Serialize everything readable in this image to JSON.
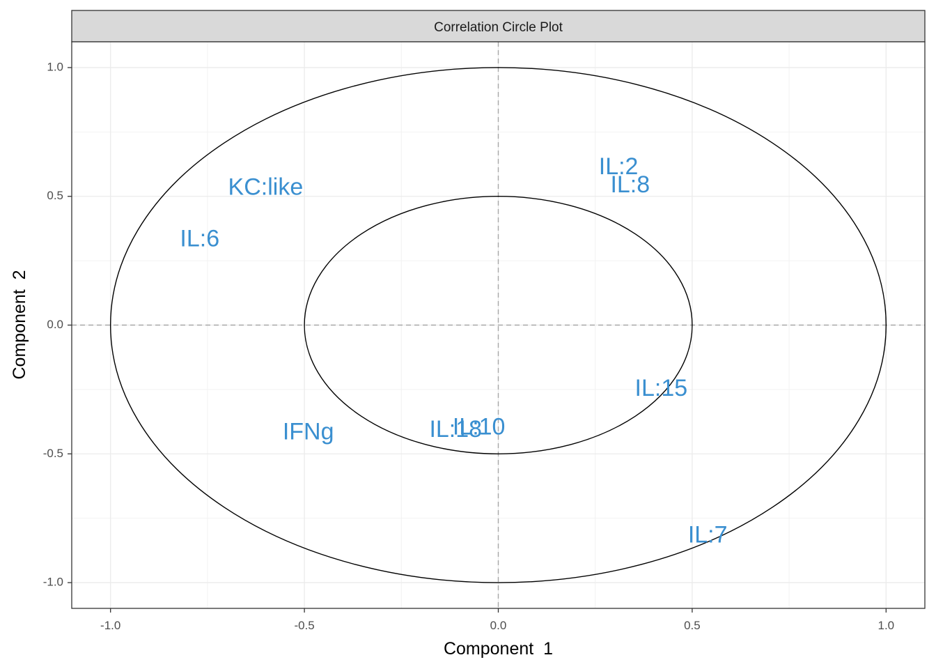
{
  "chart_data": {
    "type": "scatter",
    "title": "Correlation Circle Plot",
    "xlabel": "Component  1",
    "ylabel": "Component  2",
    "xlim": [
      -1.1,
      1.1
    ],
    "ylim": [
      -1.1,
      1.1
    ],
    "x_ticks": [
      -1.0,
      -0.5,
      0.0,
      0.5,
      1.0
    ],
    "y_ticks": [
      -1.0,
      -0.5,
      0.0,
      0.5,
      1.0
    ],
    "x_tick_labels": [
      "-1.0",
      "-0.5",
      "0.0",
      "0.5",
      "1.0"
    ],
    "y_tick_labels": [
      "-1.0",
      "-0.5",
      "0.0",
      "0.5",
      "1.0"
    ],
    "grid": true,
    "reference_lines": [
      {
        "axis": "x",
        "value": 0
      },
      {
        "axis": "y",
        "value": 0
      }
    ],
    "circles": [
      {
        "radius": 1.0
      },
      {
        "radius": 0.5
      }
    ],
    "label_color": "#3a8fd0",
    "circle_color": "#000000",
    "points": [
      {
        "label": "KC:like",
        "x": -0.6,
        "y": 0.53
      },
      {
        "label": "IL:2",
        "x": 0.31,
        "y": 0.61
      },
      {
        "label": "IL:8",
        "x": 0.34,
        "y": 0.54
      },
      {
        "label": "IL:6",
        "x": -0.77,
        "y": 0.33
      },
      {
        "label": "IL:15",
        "x": 0.42,
        "y": -0.25
      },
      {
        "label": "IFNg",
        "x": -0.49,
        "y": -0.42
      },
      {
        "label": "IL:18",
        "x": -0.11,
        "y": -0.41
      },
      {
        "label": "IL:10",
        "x": -0.05,
        "y": -0.4
      },
      {
        "label": "IL:7",
        "x": 0.54,
        "y": -0.82
      }
    ]
  }
}
